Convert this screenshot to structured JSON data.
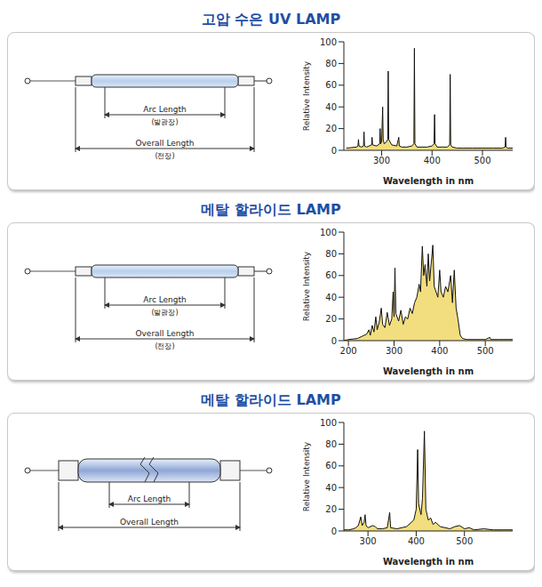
{
  "chart_data": [
    {
      "type": "area",
      "title": "고압 수은 UV LAMP",
      "x_label": "Wavelength in nm",
      "y_label": "Relative Intensity",
      "color": "#f2de7e",
      "xlim": [
        225,
        560
      ],
      "xticks": [
        300,
        400,
        500
      ],
      "ylim": [
        0,
        100
      ],
      "yticks": [
        0,
        20,
        40,
        60,
        80,
        100
      ],
      "x": [
        230,
        250,
        253,
        254,
        255,
        260,
        264,
        265,
        266,
        270,
        275,
        280,
        281,
        282,
        290,
        296,
        297,
        298,
        300,
        302,
        303,
        305,
        310,
        312,
        313,
        314,
        320,
        330,
        334,
        335,
        340,
        350,
        360,
        364,
        365,
        366,
        370,
        380,
        390,
        400,
        404,
        405,
        406,
        410,
        420,
        430,
        435,
        436,
        437,
        440,
        450,
        460,
        480,
        500,
        520,
        540,
        545,
        546,
        547,
        550,
        560
      ],
      "values": [
        2,
        3,
        4,
        10,
        4,
        3,
        4,
        17,
        4,
        3,
        4,
        5,
        12,
        5,
        4,
        6,
        20,
        6,
        8,
        40,
        10,
        6,
        8,
        10,
        73,
        10,
        5,
        4,
        12,
        4,
        3,
        3,
        4,
        6,
        94,
        6,
        3,
        3,
        3,
        4,
        6,
        33,
        6,
        3,
        3,
        3,
        5,
        70,
        5,
        3,
        2,
        2,
        2,
        2,
        2,
        2,
        3,
        12,
        3,
        2,
        2
      ]
    },
    {
      "type": "area",
      "title": "메탈 할라이드 LAMP",
      "x_label": "Wavelength in nm",
      "y_label": "Relative Intensity",
      "color": "#f2de7e",
      "xlim": [
        190,
        560
      ],
      "xticks": [
        200,
        300,
        400,
        500
      ],
      "ylim": [
        0,
        100
      ],
      "yticks": [
        0,
        20,
        40,
        60,
        80,
        100
      ],
      "x": [
        190,
        200,
        220,
        230,
        240,
        245,
        248,
        252,
        256,
        260,
        263,
        268,
        272,
        275,
        280,
        285,
        290,
        295,
        298,
        300,
        302,
        304,
        310,
        315,
        320,
        325,
        330,
        335,
        340,
        345,
        350,
        355,
        358,
        362,
        365,
        368,
        372,
        375,
        378,
        385,
        388,
        392,
        396,
        400,
        403,
        408,
        413,
        418,
        424,
        428,
        432,
        436,
        440,
        445,
        450,
        460,
        480,
        500,
        510,
        512,
        530,
        560
      ],
      "values": [
        0,
        1,
        2,
        4,
        6,
        10,
        5,
        14,
        8,
        22,
        10,
        18,
        30,
        15,
        12,
        26,
        14,
        20,
        45,
        22,
        67,
        25,
        18,
        28,
        15,
        22,
        20,
        30,
        25,
        35,
        40,
        52,
        45,
        87,
        60,
        70,
        50,
        80,
        55,
        88,
        50,
        45,
        40,
        65,
        45,
        40,
        50,
        45,
        60,
        35,
        65,
        30,
        20,
        5,
        2,
        1,
        1,
        1,
        3,
        1,
        1,
        1
      ]
    },
    {
      "type": "area",
      "title": "메탈 할라이드 LAMP",
      "x_label": "Wavelength in nm",
      "y_label": "Relative Intensity",
      "color": "#f2de7e",
      "xlim": [
        250,
        600
      ],
      "xticks": [
        300,
        400,
        500
      ],
      "ylim": [
        0,
        100
      ],
      "yticks": [
        0,
        20,
        40,
        60,
        80,
        100
      ],
      "x": [
        250,
        260,
        270,
        275,
        280,
        285,
        288,
        292,
        294,
        296,
        300,
        310,
        315,
        320,
        330,
        340,
        345,
        347,
        360,
        370,
        380,
        390,
        395,
        400,
        403,
        405,
        410,
        413,
        417,
        420,
        425,
        430,
        435,
        440,
        450,
        460,
        470,
        480,
        490,
        500,
        510,
        520,
        540,
        560,
        580,
        600
      ],
      "values": [
        1,
        1,
        2,
        3,
        5,
        13,
        5,
        8,
        15,
        5,
        3,
        5,
        4,
        2,
        2,
        3,
        17,
        3,
        2,
        3,
        4,
        8,
        10,
        20,
        75,
        25,
        15,
        30,
        92,
        20,
        10,
        12,
        6,
        8,
        4,
        3,
        2,
        4,
        5,
        2,
        3,
        1,
        2,
        1,
        1,
        1
      ]
    }
  ],
  "lamps": [
    {
      "arc_label": "Arc Length",
      "arc_sublabel": "(발광장)",
      "overall_label": "Overall Length",
      "overall_sublabel": "(전장)"
    },
    {
      "arc_label": "Arc Length",
      "arc_sublabel": "(발광장)",
      "overall_label": "Overall Length",
      "overall_sublabel": "(전장)"
    },
    {
      "arc_label": "Arc Length",
      "overall_label": "Overall Length"
    }
  ]
}
